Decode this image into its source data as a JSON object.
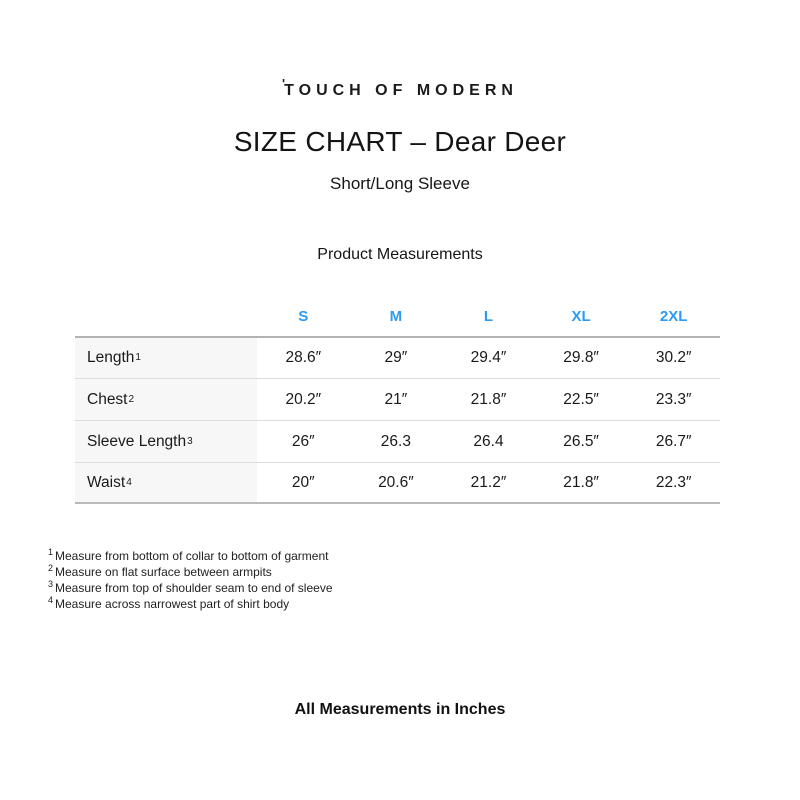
{
  "page": {
    "brand_tick": "'",
    "brand": "TOUCH OF MODERN",
    "title": "SIZE CHART – Dear Deer",
    "subtitle": "Short/Long Sleeve",
    "section_title": "Product Measurements",
    "footer": "All Measurements in Inches"
  },
  "colors": {
    "column_header_blue": "#2b9bf3",
    "label_column_bg": "#f7f7f7",
    "table_outer_border": "#b3b3b3",
    "table_row_divider": "#dcdcdc"
  },
  "size_table": {
    "columns": [
      "S",
      "M",
      "L",
      "XL",
      "2XL"
    ],
    "rows": [
      {
        "label": "Length",
        "sup": "1",
        "values": [
          "28.6″",
          "29″",
          "29.4″",
          "29.8″",
          "30.2″"
        ]
      },
      {
        "label": "Chest",
        "sup": "2",
        "values": [
          "20.2″",
          "21″",
          "21.8″",
          "22.5″",
          "23.3″"
        ]
      },
      {
        "label": "Sleeve Length",
        "sup": "3",
        "values": [
          "26″",
          "26.3",
          "26.4",
          "26.5″",
          "26.7″"
        ]
      },
      {
        "label": "Waist",
        "sup": "4",
        "values": [
          "20″",
          "20.6″",
          "21.2″",
          "21.8″",
          "22.3″"
        ]
      }
    ]
  },
  "footnotes": [
    {
      "sup": "1",
      "text": "Measure from bottom of collar to bottom of garment"
    },
    {
      "sup": "2",
      "text": "Measure on flat surface between armpits"
    },
    {
      "sup": "3",
      "text": "Measure from top of shoulder seam to end of sleeve"
    },
    {
      "sup": "4",
      "text": "Measure across narrowest part of shirt body"
    }
  ]
}
